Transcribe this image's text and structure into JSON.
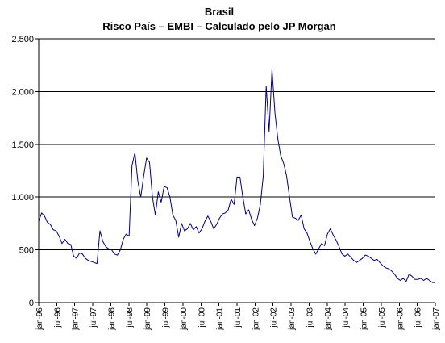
{
  "chart_data": {
    "type": "line",
    "title": "Brasil",
    "subtitle": "Risco País – EMBI – Calculado pelo JP Morgan",
    "xlabel": "",
    "ylabel": "",
    "ylim": [
      0,
      2500
    ],
    "yticks": [
      0,
      500,
      1000,
      1500,
      2000,
      2500
    ],
    "ytick_labels": [
      "0",
      "500",
      "1.000",
      "1.500",
      "2.000",
      "2.500"
    ],
    "xtick_labels": [
      "jan-96",
      "jul-96",
      "jan-97",
      "jul-97",
      "jan-98",
      "jul-98",
      "jan-99",
      "jul-99",
      "jan-00",
      "jul-00",
      "jan-01",
      "jul-01",
      "jan-02",
      "jul-02",
      "jan-03",
      "jul-03",
      "jan-04",
      "jul-04",
      "jan-05",
      "jul-05",
      "jan-06",
      "jul-06",
      "jan-07"
    ],
    "grid": "horizontal",
    "legend": "none",
    "line_color": "#000080",
    "series": [
      {
        "values": [
          770,
          850,
          820,
          760,
          740,
          690,
          680,
          630,
          560,
          600,
          560,
          550,
          440,
          420,
          470,
          460,
          420,
          400,
          390,
          380,
          370,
          680,
          580,
          530,
          510,
          500,
          460,
          450,
          500,
          600,
          650,
          630,
          1300,
          1420,
          1150,
          1000,
          1200,
          1370,
          1330,
          1000,
          830,
          1050,
          950,
          1100,
          1090,
          1000,
          830,
          780,
          620,
          750,
          680,
          700,
          750,
          690,
          720,
          660,
          700,
          770,
          820,
          770,
          700,
          740,
          800,
          840,
          850,
          880,
          980,
          930,
          1190,
          1190,
          1000,
          840,
          880,
          790,
          730,
          800,
          930,
          1200,
          2050,
          1620,
          2210,
          1800,
          1550,
          1390,
          1320,
          1200,
          1000,
          810,
          800,
          780,
          830,
          700,
          660,
          580,
          510,
          460,
          510,
          560,
          540,
          650,
          700,
          640,
          590,
          530,
          460,
          440,
          460,
          430,
          400,
          380,
          400,
          420,
          450,
          440,
          420,
          400,
          410,
          380,
          350,
          330,
          320,
          300,
          270,
          230,
          210,
          230,
          200,
          270,
          250,
          220,
          220,
          230,
          210,
          230,
          210,
          190,
          190
        ]
      }
    ]
  }
}
